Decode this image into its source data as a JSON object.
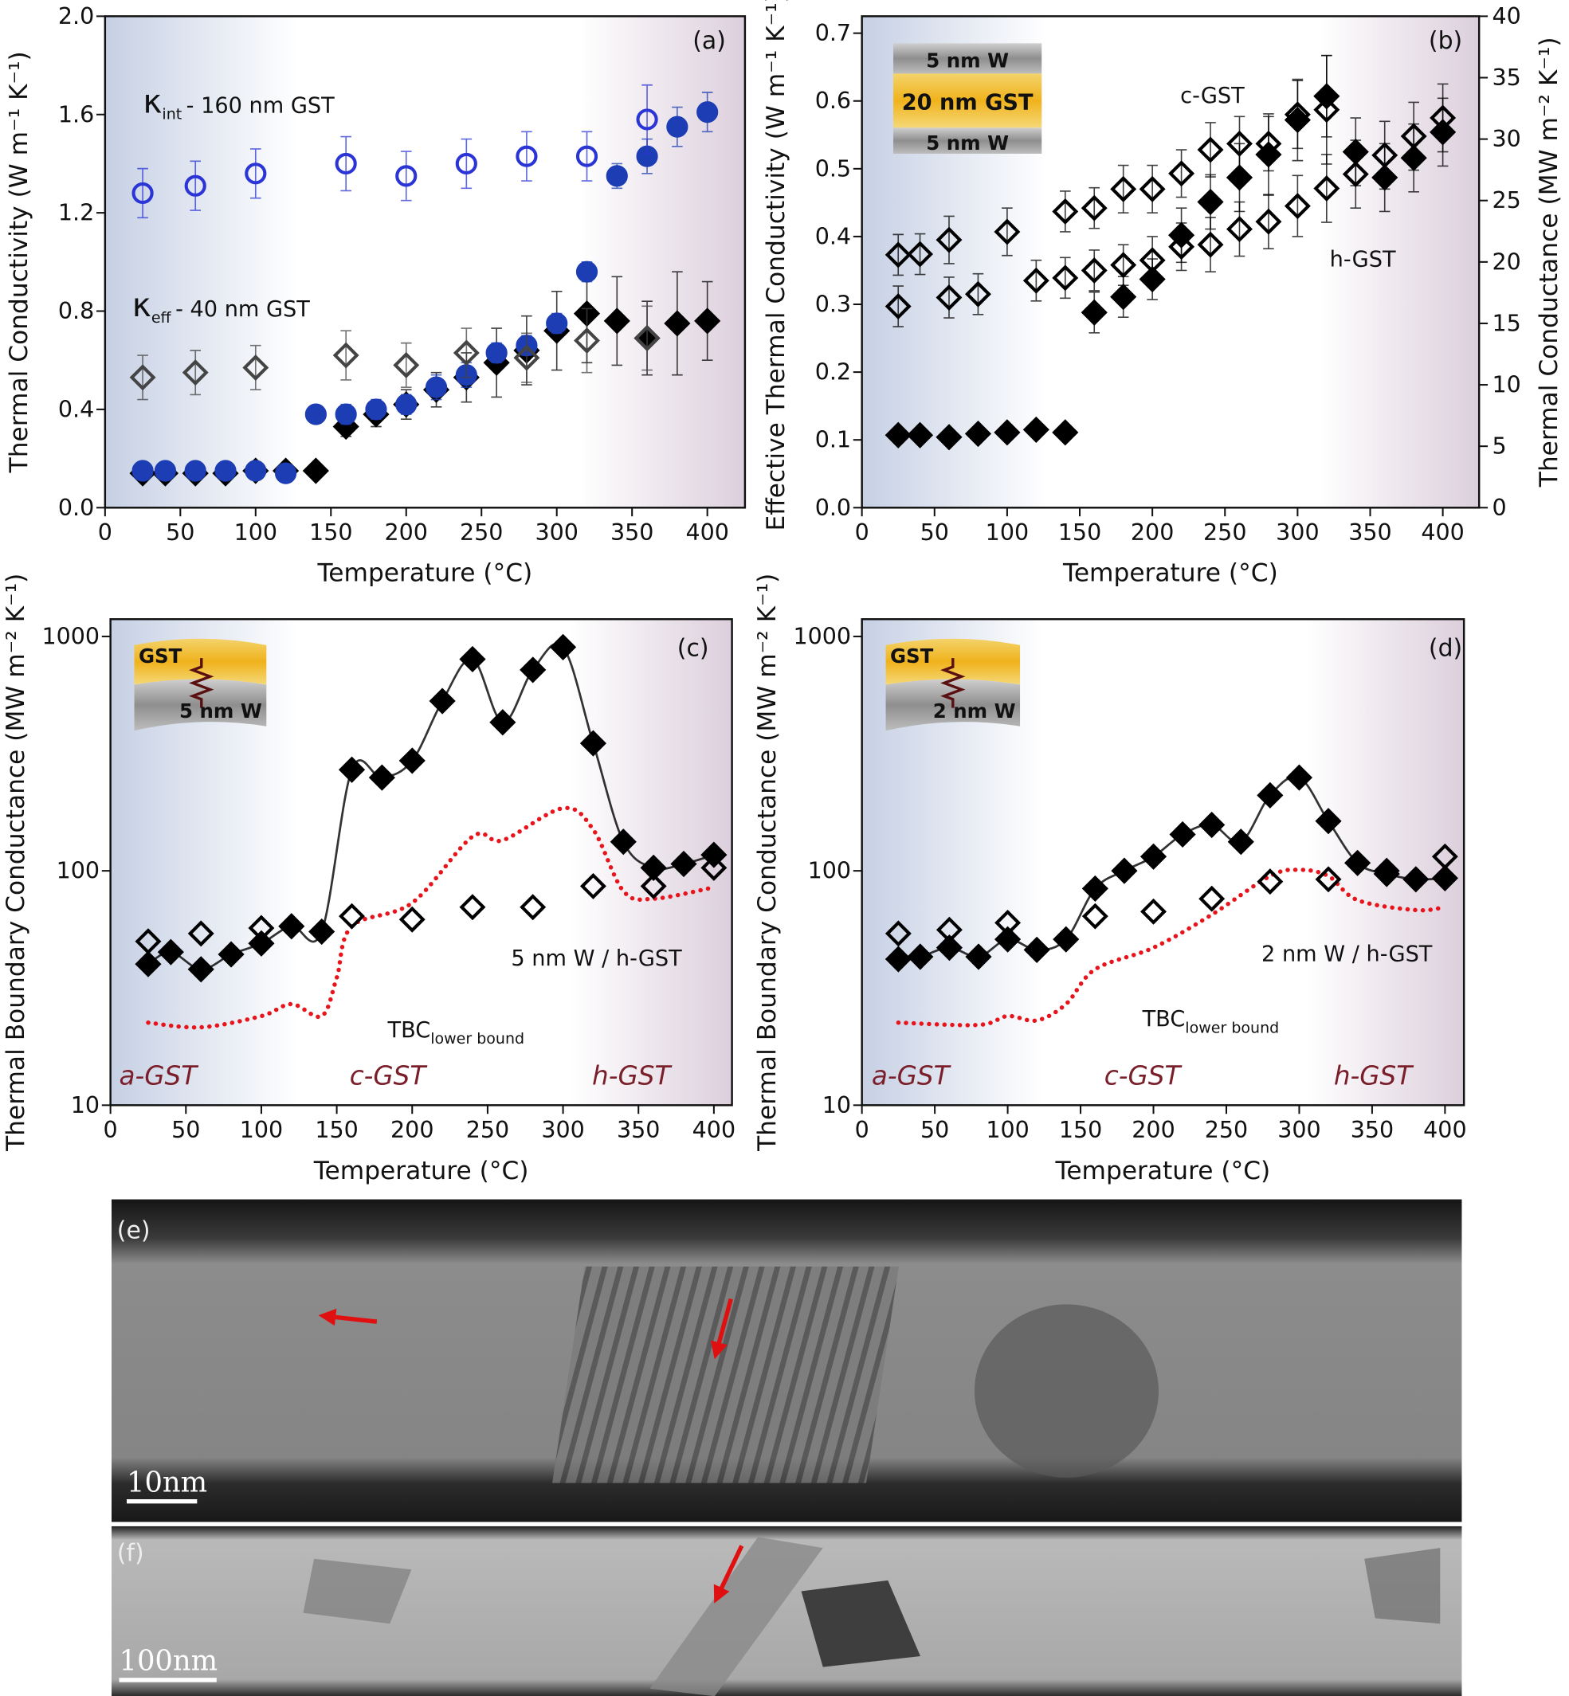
{
  "chart_data": [
    {
      "type": "scatter",
      "label": "(a)",
      "xlabel": "Temperature (°C)",
      "ylabel": "Thermal Conductivity (W m⁻¹ K⁻¹)",
      "xlim": [
        0,
        425
      ],
      "xticks": [
        0,
        50,
        100,
        150,
        200,
        250,
        300,
        350,
        400
      ],
      "ylim": [
        0,
        2.0
      ],
      "yticks": [
        {
          "value": 0,
          "label": "0.0"
        },
        0.4,
        0.8,
        1.2,
        1.6,
        {
          "value": 2.0,
          "label": "2.0"
        }
      ],
      "annotations": [
        {
          "text": "κ",
          "sub": "int",
          "text2": "- 160 nm GST"
        },
        {
          "text": "κ",
          "sub": "eff",
          "text2": "- 40 nm GST"
        }
      ],
      "series": [
        {
          "color": "#000000",
          "marker": "diamond",
          "filled": true,
          "x": [
            25,
            40,
            60,
            80,
            100,
            120,
            140,
            160,
            180,
            200,
            220,
            240,
            260,
            280,
            300,
            320,
            340,
            360,
            380,
            400
          ],
          "values": [
            0.14,
            0.14,
            0.14,
            0.14,
            0.15,
            0.15,
            0.15,
            0.33,
            0.38,
            0.42,
            0.48,
            0.53,
            0.59,
            0.64,
            0.72,
            0.79,
            0.76,
            0.69,
            0.75,
            0.76
          ],
          "errors": [
            0.02,
            0.02,
            0.02,
            0.02,
            0.02,
            0.02,
            0.02,
            0.04,
            0.05,
            0.06,
            0.07,
            0.1,
            0.14,
            0.14,
            0.16,
            0.2,
            0.18,
            0.15,
            0.21,
            0.16
          ]
        },
        {
          "color": "#1c3db3",
          "marker": "circle",
          "filled": true,
          "x": [
            25,
            40,
            60,
            80,
            100,
            120,
            140,
            160,
            180,
            200,
            220,
            240,
            260,
            280,
            300,
            320,
            340,
            360,
            380,
            400
          ],
          "values": [
            0.15,
            0.15,
            0.15,
            0.15,
            0.15,
            0.14,
            0.38,
            0.38,
            0.4,
            0.42,
            0.49,
            0.54,
            0.63,
            0.66,
            0.75,
            0.96,
            1.35,
            1.43,
            1.55,
            1.61
          ],
          "errors": [
            0.02,
            0.02,
            0.02,
            0.02,
            0.02,
            0.02,
            0.02,
            0.04,
            0.04,
            0.04,
            0.05,
            0.05,
            0.04,
            0.04,
            0.04,
            0.04,
            0.05,
            0.07,
            0.08,
            0.08
          ]
        },
        {
          "color": "#444444",
          "marker": "diamond",
          "filled": false,
          "x": [
            25,
            60,
            100,
            160,
            200,
            240,
            280,
            320,
            360
          ],
          "values": [
            0.53,
            0.55,
            0.57,
            0.62,
            0.58,
            0.63,
            0.61,
            0.68,
            0.69
          ],
          "errors": [
            0.09,
            0.09,
            0.09,
            0.1,
            0.09,
            0.1,
            0.1,
            0.13,
            0.13
          ]
        },
        {
          "color": "#2b35d6",
          "marker": "circle",
          "filled": false,
          "x": [
            25,
            60,
            100,
            160,
            200,
            240,
            280,
            320,
            360
          ],
          "values": [
            1.28,
            1.31,
            1.36,
            1.4,
            1.35,
            1.4,
            1.43,
            1.43,
            1.58
          ],
          "errors": [
            0.1,
            0.1,
            0.1,
            0.11,
            0.1,
            0.1,
            0.1,
            0.1,
            0.14
          ]
        }
      ]
    },
    {
      "type": "scatter",
      "label": "(b)",
      "xlabel": "Temperature (°C)",
      "ylabel": "Effective Thermal Conductivity (W m⁻¹ K⁻¹)",
      "y2label": "Thermal Conductance (MW m⁻² K⁻¹)",
      "xlim": [
        0,
        425
      ],
      "xticks": [
        0,
        50,
        100,
        150,
        200,
        250,
        300,
        350,
        400
      ],
      "ylim": [
        0,
        0.725
      ],
      "yticks": [
        {
          "value": 0,
          "label": "0.0"
        },
        0.1,
        0.2,
        0.3,
        0.4,
        0.5,
        0.6,
        0.7
      ],
      "y2lim": [
        0,
        40
      ],
      "y2ticks": [
        0,
        5,
        10,
        15,
        20,
        25,
        30,
        35,
        40
      ],
      "inset": [
        "5 nm W",
        "20 nm GST",
        "5 nm W"
      ],
      "annotations": [
        {
          "text": "c-GST"
        },
        {
          "text": "h-GST"
        }
      ],
      "series": [
        {
          "color": "#000000",
          "marker": "diamond",
          "filled": true,
          "x": [
            25,
            40,
            60,
            80,
            100,
            120,
            140,
            160,
            180,
            200,
            220,
            240,
            260,
            280,
            300,
            320,
            340,
            360,
            380,
            400
          ],
          "values": [
            0.107,
            0.107,
            0.104,
            0.109,
            0.111,
            0.115,
            0.111,
            0.288,
            0.311,
            0.337,
            0.402,
            0.451,
            0.487,
            0.521,
            0.572,
            0.607,
            0.525,
            0.487,
            0.516,
            0.554
          ],
          "errors": [
            0.005,
            0.005,
            0.005,
            0.005,
            0.005,
            0.005,
            0.005,
            0.03,
            0.03,
            0.03,
            0.04,
            0.04,
            0.05,
            0.06,
            0.06,
            0.06,
            0.05,
            0.05,
            0.05,
            0.05
          ]
        },
        {
          "color": "#000000",
          "marker": "diamond",
          "filled": false,
          "x": [
            25,
            60,
            80,
            120,
            140,
            160,
            180,
            200,
            220,
            240,
            260,
            280,
            300,
            320,
            340,
            360,
            380,
            400
          ],
          "values": [
            0.297,
            0.31,
            0.315,
            0.335,
            0.339,
            0.35,
            0.358,
            0.365,
            0.385,
            0.388,
            0.411,
            0.422,
            0.445,
            0.471,
            0.492,
            0.52,
            0.548,
            0.575
          ],
          "errors": [
            0.03,
            0.03,
            0.03,
            0.03,
            0.03,
            0.03,
            0.03,
            0.035,
            0.035,
            0.04,
            0.04,
            0.04,
            0.045,
            0.05,
            0.05,
            0.05,
            0.05,
            0.05
          ]
        },
        {
          "color": "#000000",
          "marker": "diamond",
          "filled": false,
          "x": [
            25,
            40,
            60,
            100,
            140,
            160,
            180,
            200,
            220,
            240,
            260,
            280,
            300,
            320
          ],
          "values": [
            0.373,
            0.374,
            0.395,
            0.407,
            0.437,
            0.442,
            0.47,
            0.47,
            0.493,
            0.528,
            0.537,
            0.537,
            0.58,
            0.587
          ],
          "errors": [
            0.03,
            0.03,
            0.035,
            0.035,
            0.03,
            0.03,
            0.035,
            0.035,
            0.035,
            0.04,
            0.04,
            0.04,
            0.05,
            0.08
          ]
        }
      ]
    },
    {
      "type": "scatter",
      "label": "(c)",
      "log_y": true,
      "xlabel": "Temperature (°C)",
      "ylabel": "Thermal Boundary Conductance (MW m⁻² K⁻¹)",
      "xlim": [
        0,
        412
      ],
      "xticks": [
        0,
        50,
        100,
        150,
        200,
        250,
        300,
        350,
        400
      ],
      "ylim": [
        10,
        1185
      ],
      "yticks": [
        10,
        100,
        1000
      ],
      "inset": [
        "GST",
        "5 nm W"
      ],
      "phases": [
        "a-GST",
        "c-GST",
        "h-GST"
      ],
      "annotations": [
        {
          "text": "5 nm W / h-GST"
        },
        {
          "text": "TBC",
          "sub": "lower bound"
        }
      ],
      "series": [
        {
          "color": "#e8141b",
          "marker": "none",
          "line": "dotted",
          "x": [
            25,
            60,
            100,
            120,
            140,
            150,
            160,
            200,
            240,
            260,
            300,
            320,
            340,
            360,
            400
          ],
          "values": [
            22.5,
            21.5,
            24,
            27,
            24,
            35,
            58,
            73,
            140,
            135,
            185,
            150,
            82,
            76,
            85
          ]
        },
        {
          "color": "#000000",
          "marker": "diamond",
          "filled": true,
          "line": "solid",
          "x": [
            25,
            40,
            60,
            80,
            100,
            120,
            140,
            160,
            180,
            200,
            220,
            240,
            260,
            280,
            300,
            320,
            340,
            360,
            380,
            400
          ],
          "values": [
            40,
            45,
            38,
            44,
            49,
            58,
            55,
            270,
            250,
            295,
            530,
            800,
            430,
            720,
            900,
            350,
            133,
            103,
            107,
            117
          ]
        },
        {
          "color": "#000000",
          "marker": "diamond",
          "filled": false,
          "x": [
            25,
            60,
            100,
            160,
            200,
            240,
            280,
            320,
            360,
            400
          ],
          "values": [
            50,
            54,
            57,
            64,
            62,
            70,
            70,
            86,
            86,
            103
          ]
        }
      ]
    },
    {
      "type": "scatter",
      "label": "(d)",
      "log_y": true,
      "xlabel": "Temperature (°C)",
      "ylabel": "Thermal Boundary Conductance (MW m⁻² K⁻¹)",
      "xlim": [
        0,
        413
      ],
      "xticks": [
        0,
        50,
        100,
        150,
        200,
        250,
        300,
        350,
        400
      ],
      "ylim": [
        10,
        1185
      ],
      "yticks": [
        10,
        100,
        1000
      ],
      "inset": [
        "GST",
        "2 nm W"
      ],
      "phases": [
        "a-GST",
        "c-GST",
        "h-GST"
      ],
      "annotations": [
        {
          "text": "2 nm W / h-GST"
        },
        {
          "text": "TBC",
          "sub": "lower bound"
        }
      ],
      "series": [
        {
          "color": "#e8141b",
          "marker": "none",
          "line": "dotted",
          "x": [
            25,
            80,
            100,
            120,
            140,
            160,
            200,
            240,
            280,
            300,
            320,
            340,
            380,
            400
          ],
          "values": [
            22.5,
            22,
            24,
            23,
            27,
            38,
            47,
            65,
            95,
            101,
            95,
            75,
            68,
            70
          ]
        },
        {
          "color": "#000000",
          "marker": "diamond",
          "filled": true,
          "line": "solid",
          "x": [
            25,
            40,
            60,
            80,
            100,
            120,
            140,
            160,
            180,
            200,
            220,
            240,
            260,
            280,
            300,
            320,
            340,
            360,
            380,
            400
          ],
          "values": [
            42,
            43,
            47,
            43,
            51,
            46,
            51,
            84,
            100,
            115,
            143,
            157,
            133,
            210,
            250,
            163,
            108,
            97,
            92,
            93
          ]
        },
        {
          "color": "#000000",
          "marker": "diamond",
          "filled": false,
          "x": [
            25,
            60,
            100,
            160,
            200,
            240,
            280,
            320,
            360,
            400
          ],
          "values": [
            54,
            56,
            60,
            64,
            67,
            76,
            90,
            92,
            100,
            115
          ]
        }
      ]
    }
  ],
  "micrographs": [
    {
      "label": "(e)",
      "scale_bar": "10nm"
    },
    {
      "label": "(f)",
      "scale_bar": "100nm"
    }
  ]
}
